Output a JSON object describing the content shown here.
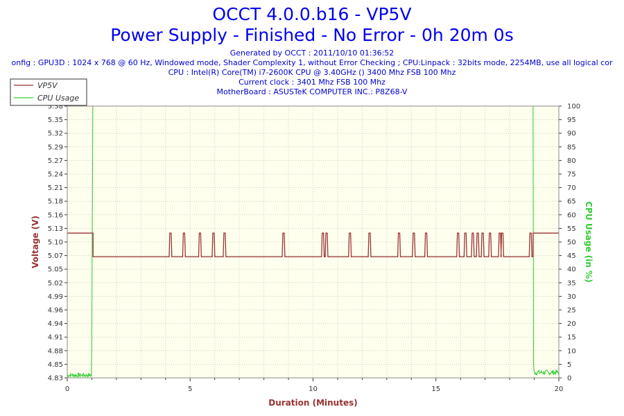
{
  "header": {
    "title": "OCCT 4.0.0.b16 - VP5V",
    "subtitle": "Power Supply - Finished - No Error - 0h 20m 0s",
    "info": [
      "Generated by OCCT : 2011/10/10 01:36:52",
      "onfig : GPU3D : 1024 x 768 @ 60 Hz, Windowed mode, Shader Complexity 1, without Error Checking ; CPU:Linpack : 32bits mode, 2254MB, use all logical cor",
      "CPU : Intel(R) Core(TM) i7-2600K CPU @ 3.40GHz () 3400 Mhz FSB 100 Mhz",
      "Current clock : 3401 Mhz FSB 100 Mhz",
      "MotherBoard : ASUSTeK COMPUTER INC.: P8Z68-V"
    ]
  },
  "chart_data": {
    "type": "line",
    "title": "OCCT 4.0.0.b16 - VP5V",
    "xlabel": "Duration (Minutes)",
    "ylabel": "Voltage (V)",
    "y2label": "CPU Usage (in %)",
    "xlim": [
      0,
      20
    ],
    "ylim": [
      4.83,
      5.38
    ],
    "y2lim": [
      0,
      100
    ],
    "x_ticks": [
      0,
      5,
      10,
      15,
      20
    ],
    "y_ticks": [
      "5.38",
      "5.35",
      "5.32",
      "5.29",
      "5.27",
      "5.24",
      "5.21",
      "5.18",
      "5.16",
      "5.13",
      "5.10",
      "5.07",
      "5.05",
      "5.02",
      "4.99",
      "4.96",
      "4.94",
      "4.91",
      "4.88",
      "4.85",
      "4.83"
    ],
    "y2_ticks": [
      100,
      95,
      90,
      85,
      80,
      75,
      70,
      65,
      60,
      55,
      50,
      45,
      40,
      35,
      30,
      25,
      20,
      15,
      10,
      5,
      0
    ],
    "legend": {
      "placement": "top-left",
      "entries": [
        "VP5V",
        "CPU Usage"
      ]
    },
    "colors": {
      "vp5v": "#993333",
      "cpu": "#33cc33",
      "plot_bg": "#ffffee",
      "grid": "#cccccc",
      "title": "#0000ee"
    },
    "series": [
      {
        "name": "VP5V",
        "base_low": 5.075,
        "high": 5.123,
        "high_segments": [
          [
            0,
            1.05
          ],
          [
            18.95,
            20
          ]
        ],
        "spikes": [
          4.2,
          4.75,
          5.4,
          5.95,
          6.4,
          8.8,
          10.4,
          10.55,
          11.5,
          12.3,
          13.5,
          14.1,
          14.6,
          15.9,
          16.2,
          16.5,
          16.7,
          16.9,
          17.2,
          17.6,
          17.7,
          18.85
        ]
      },
      {
        "name": "CPU Usage",
        "idle_value": 1,
        "load_value": 100,
        "load_start": 1.0,
        "load_end": 18.95
      }
    ]
  }
}
